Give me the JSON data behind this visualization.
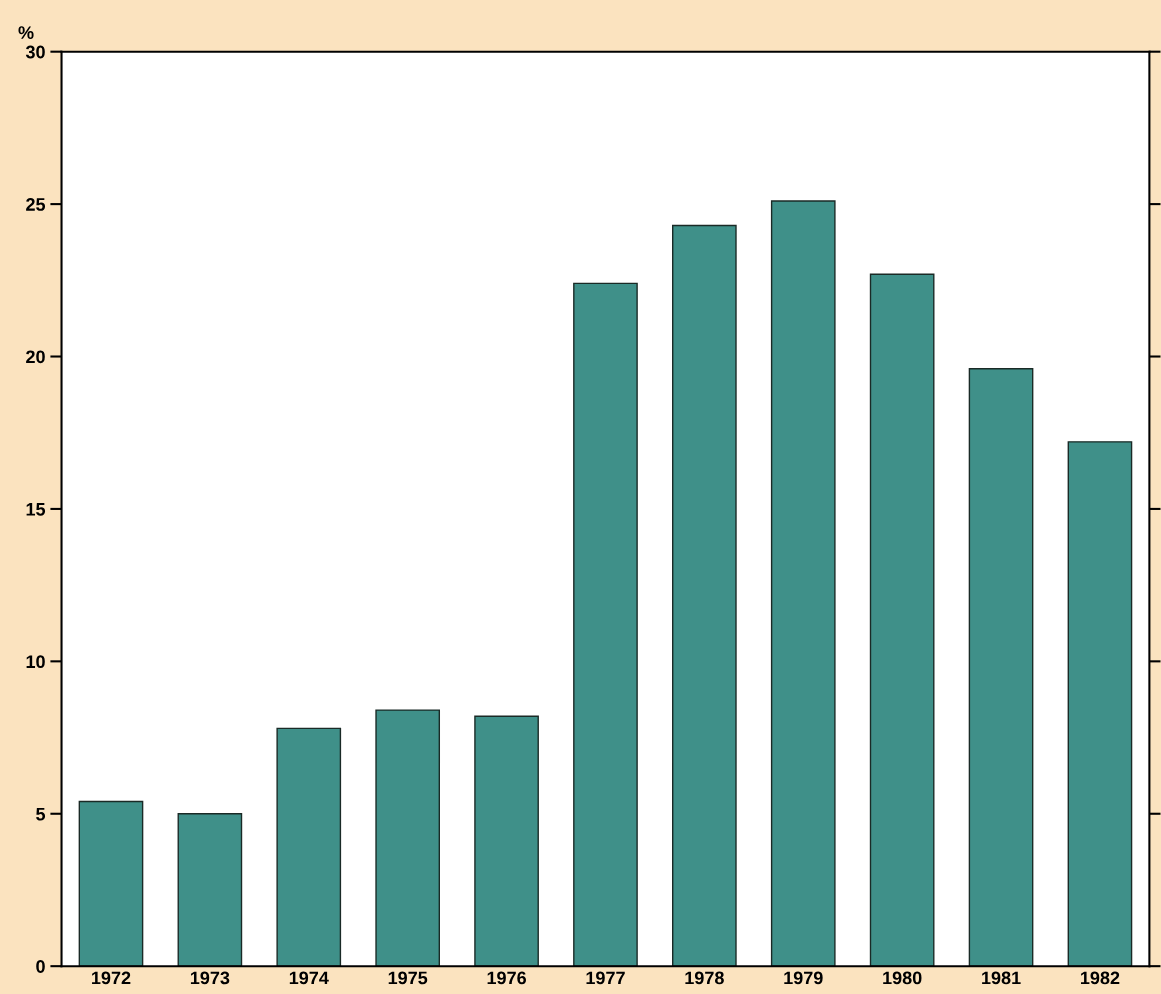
{
  "chart_data": {
    "type": "bar",
    "ylabel": "%",
    "categories": [
      "1972",
      "1973",
      "1974",
      "1975",
      "1976",
      "1977",
      "1978",
      "1979",
      "1980",
      "1981",
      "1982"
    ],
    "values": [
      5.4,
      5.0,
      7.8,
      8.4,
      8.2,
      22.4,
      24.3,
      25.1,
      22.7,
      19.6,
      17.2
    ],
    "color": "#3f9089",
    "ylim": [
      0,
      30
    ],
    "yticks": [
      0,
      5,
      10,
      15,
      20,
      25,
      30
    ],
    "grid": false,
    "legend": false
  }
}
